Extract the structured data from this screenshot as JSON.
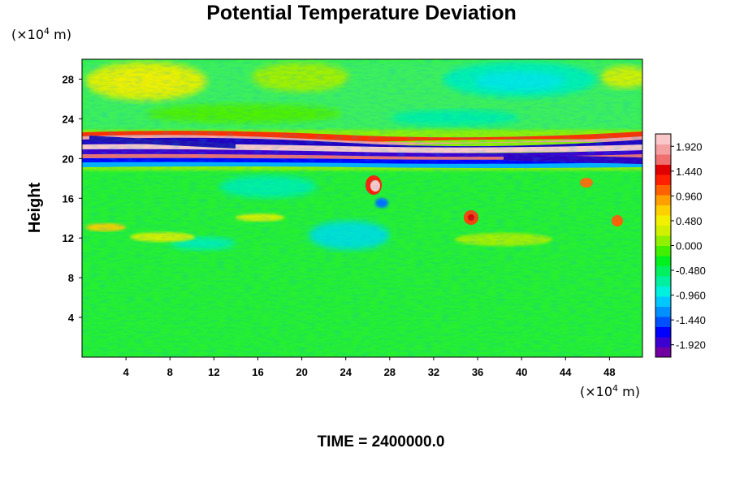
{
  "chart_data": {
    "type": "heatmap",
    "title": "Potential Temperature Deviation",
    "ylabel": "Height",
    "x_unit": {
      "prefix": "(×10",
      "exp": "4",
      "suffix": " m)"
    },
    "y_unit": {
      "prefix": "(×10",
      "exp": "4",
      "suffix": " m)"
    },
    "xlim": [
      0,
      51
    ],
    "ylim": [
      0,
      30
    ],
    "x_ticks": [
      "4",
      "8",
      "12",
      "16",
      "20",
      "24",
      "28",
      "32",
      "36",
      "40",
      "44",
      "48"
    ],
    "y_ticks": [
      "4",
      "8",
      "12",
      "16",
      "20",
      "24",
      "28"
    ],
    "colorbar": {
      "min": -2.16,
      "max": 2.16,
      "step": 0.12,
      "tick_labels": [
        "1.920",
        "1.440",
        "0.960",
        "0.480",
        "0.000",
        "-0.480",
        "-0.960",
        "-1.440",
        "-1.920"
      ],
      "colors": [
        "#7000a0",
        "#3c00d0",
        "#0000ff",
        "#0050ff",
        "#0090ff",
        "#00c8ff",
        "#00f0e0",
        "#00f0a0",
        "#00f060",
        "#00f020",
        "#40f000",
        "#90f000",
        "#d0f000",
        "#f0f000",
        "#ffd000",
        "#ffa000",
        "#ff6000",
        "#ff2000",
        "#e00000",
        "#f07070",
        "#f5a0a0",
        "#fac8c8"
      ]
    },
    "footer": "TIME = 2400000.0"
  }
}
